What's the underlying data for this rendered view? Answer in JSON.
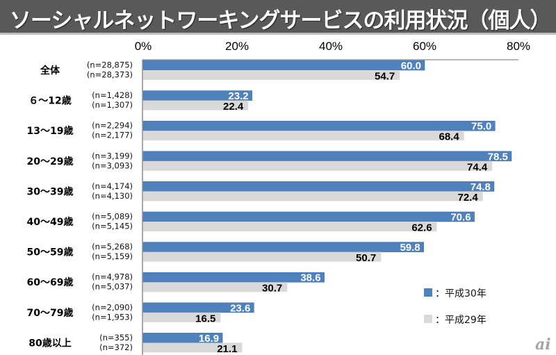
{
  "title": "ソーシャルネットワーキングサービスの利用状況（個人）",
  "logo": "ai",
  "colors": {
    "h30": "#4f81bd",
    "h29": "#d9d9d9",
    "title_bg": "#595959"
  },
  "chart_data": {
    "type": "bar",
    "orientation": "horizontal",
    "title": "ソーシャルネットワーキングサービスの利用状況（個人）",
    "xlabel": "",
    "ylabel": "",
    "xlim": [
      0,
      80
    ],
    "x_ticks": [
      "0%",
      "20%",
      "40%",
      "60%",
      "80%"
    ],
    "grid": false,
    "legend_position": "bottom-right",
    "categories": [
      "全体",
      "６～12歳",
      "13～19歳",
      "20～29歳",
      "30～39歳",
      "40～49歳",
      "50～59歳",
      "60～69歳",
      "70～79歳",
      "80歳以上"
    ],
    "series": [
      {
        "name": "：平成30年",
        "color": "#4f81bd",
        "values": [
          60.0,
          23.2,
          75.0,
          78.5,
          74.8,
          70.6,
          59.8,
          38.6,
          23.6,
          16.9
        ],
        "labels": [
          "60.0",
          "23.2",
          "75.0",
          "78.5",
          "74.8",
          "70.6",
          "59.8",
          "38.6",
          "23.6",
          "16.9"
        ],
        "n": [
          "(n=28,875)",
          "(n=1,428)",
          "(n=2,294)",
          "(n=3,199)",
          "(n=4,174)",
          "(n=5,089)",
          "(n=5,268)",
          "(n=4,978)",
          "(n=2,090)",
          "(n=355)"
        ]
      },
      {
        "name": "：平成29年",
        "color": "#d9d9d9",
        "values": [
          54.7,
          22.4,
          68.4,
          74.4,
          72.4,
          62.6,
          50.7,
          30.7,
          16.5,
          21.1
        ],
        "labels": [
          "54.7",
          "22.4",
          "68.4",
          "74.4",
          "72.4",
          "62.6",
          "50.7",
          "30.7",
          "16.5",
          "21.1"
        ],
        "n": [
          "(n=28,373)",
          "(n=1,307)",
          "(n=2,177)",
          "(n=3,093)",
          "(n=4,130)",
          "(n=5,145)",
          "(n=5,159)",
          "(n=5,037)",
          "(n=1,953)",
          "(n=372)"
        ]
      }
    ]
  }
}
